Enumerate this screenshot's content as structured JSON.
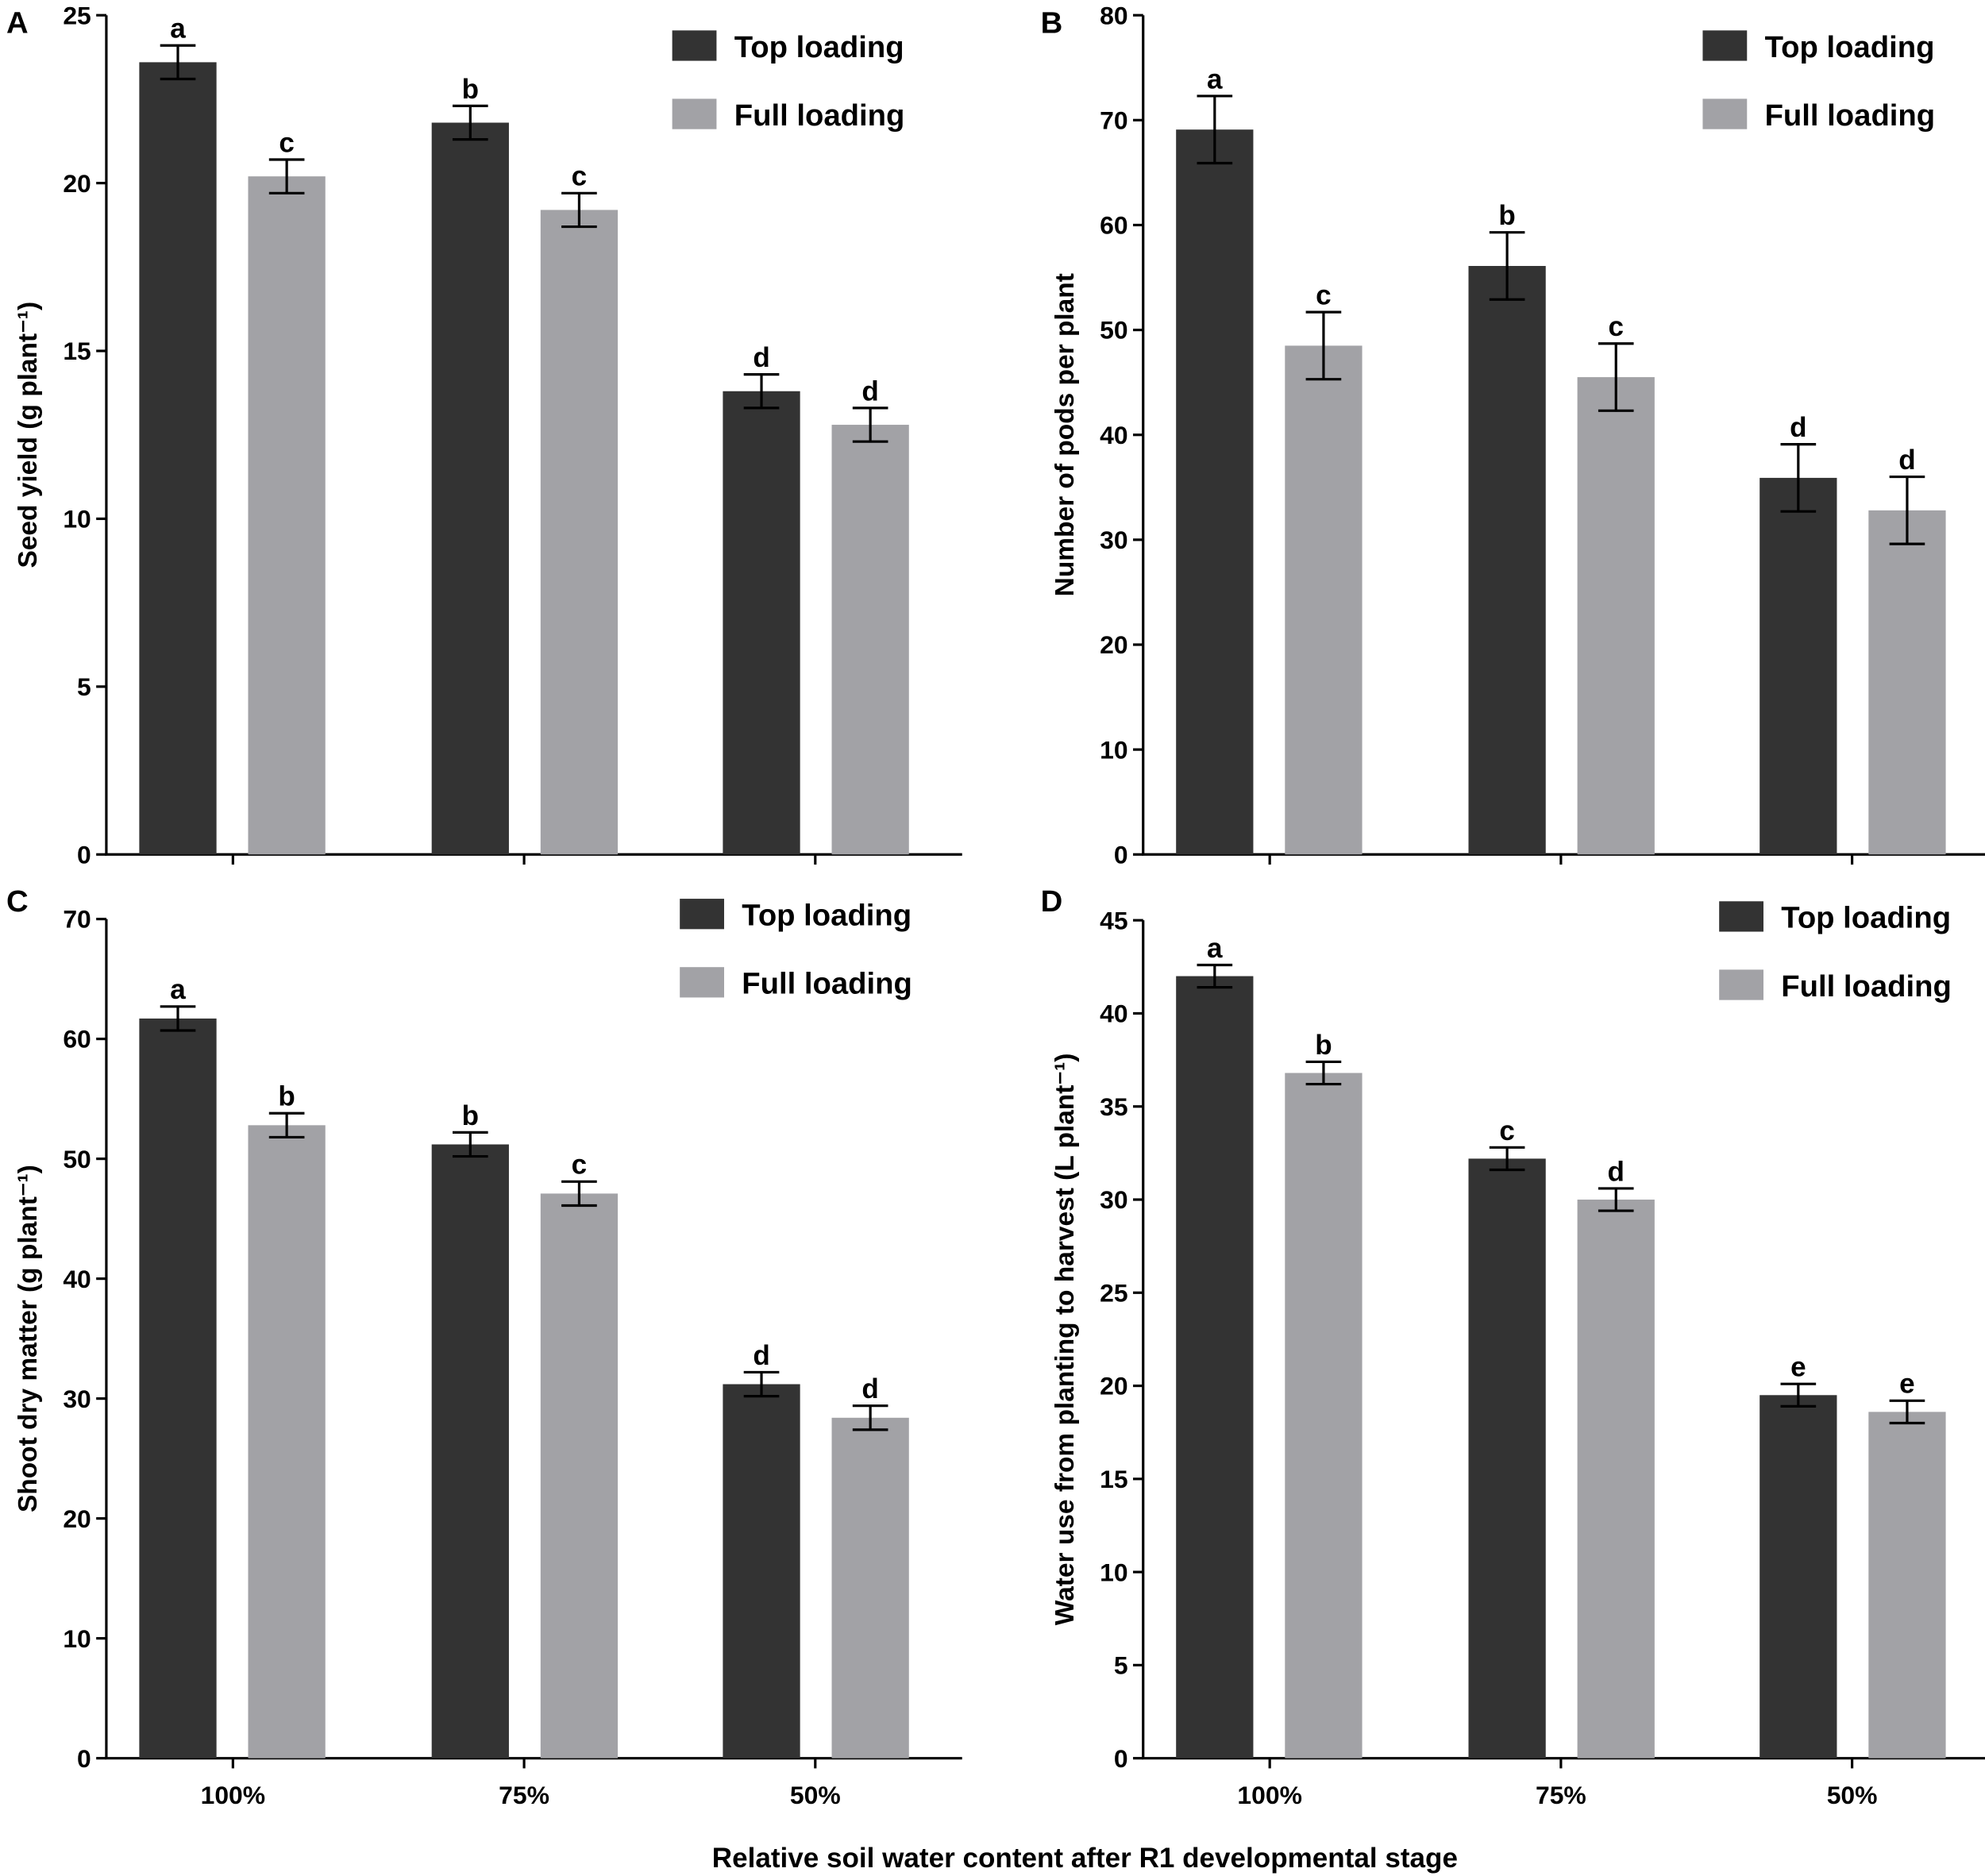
{
  "colors": {
    "top": "#333333",
    "full": "#a2a2a6",
    "axis": "#000000"
  },
  "common_xlabel": "Relative soil water content after R1 developmental stage",
  "chart_data": [
    {
      "type": "bar",
      "panel": "A",
      "ylabel": "Seed yield (g plant⁻¹)",
      "ylim": [
        0,
        25
      ],
      "yticks": [
        0,
        5,
        10,
        15,
        20,
        25
      ],
      "categories": [
        "100%",
        "75%",
        "50%"
      ],
      "legend": "top-right",
      "series": [
        {
          "name": "Top loading",
          "values": [
            23.6,
            21.8,
            13.8
          ],
          "errors": [
            0.5,
            0.5,
            0.5
          ],
          "letters": [
            "a",
            "b",
            "d"
          ]
        },
        {
          "name": "Full loading",
          "values": [
            20.2,
            19.2,
            12.8
          ],
          "errors": [
            0.5,
            0.5,
            0.5
          ],
          "letters": [
            "c",
            "c",
            "d"
          ]
        }
      ]
    },
    {
      "type": "bar",
      "panel": "B",
      "ylabel": "Number of pods per plant",
      "ylim": [
        0,
        80
      ],
      "yticks": [
        0,
        10,
        20,
        30,
        40,
        50,
        60,
        70,
        80
      ],
      "categories": [
        "100%",
        "75%",
        "50%"
      ],
      "legend": "top-right",
      "series": [
        {
          "name": "Top loading",
          "values": [
            69.1,
            56.1,
            35.9
          ],
          "errors": [
            3.2,
            3.2,
            3.2
          ],
          "letters": [
            "a",
            "b",
            "d"
          ]
        },
        {
          "name": "Full loading",
          "values": [
            48.5,
            45.5,
            32.8
          ],
          "errors": [
            3.2,
            3.2,
            3.2
          ],
          "letters": [
            "c",
            "c",
            "d"
          ]
        }
      ]
    },
    {
      "type": "bar",
      "panel": "C",
      "ylabel": "Shoot dry matter (g plant⁻¹)",
      "ylim": [
        0,
        70
      ],
      "yticks": [
        0,
        10,
        20,
        30,
        40,
        50,
        60,
        70
      ],
      "categories": [
        "100%",
        "75%",
        "50%"
      ],
      "legend": "top-right",
      "series": [
        {
          "name": "Top loading",
          "values": [
            61.7,
            51.2,
            31.2
          ],
          "errors": [
            1.0,
            1.0,
            1.0
          ],
          "letters": [
            "a",
            "b",
            "d"
          ]
        },
        {
          "name": "Full loading",
          "values": [
            52.8,
            47.1,
            28.4
          ],
          "errors": [
            1.0,
            1.0,
            1.0
          ],
          "letters": [
            "b",
            "c",
            "d"
          ]
        }
      ]
    },
    {
      "type": "bar",
      "panel": "D",
      "ylabel": "Water use from planting to harvest (L plant⁻¹)",
      "ylim": [
        0,
        45
      ],
      "yticks": [
        0,
        5,
        10,
        15,
        20,
        25,
        30,
        35,
        40,
        45
      ],
      "categories": [
        "100%",
        "75%",
        "50%"
      ],
      "legend": "top-right",
      "series": [
        {
          "name": "Top loading",
          "values": [
            42.0,
            32.2,
            19.5
          ],
          "errors": [
            0.6,
            0.6,
            0.6
          ],
          "letters": [
            "a",
            "c",
            "e"
          ]
        },
        {
          "name": "Full loading",
          "values": [
            36.8,
            30.0,
            18.6
          ],
          "errors": [
            0.6,
            0.6,
            0.6
          ],
          "letters": [
            "b",
            "d",
            "e"
          ]
        }
      ]
    }
  ]
}
